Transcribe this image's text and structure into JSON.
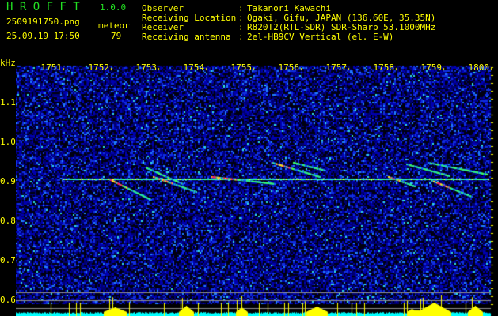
{
  "header": {
    "app_name": "H R O F F T",
    "version": "1.0.0",
    "filename": "2509191750.png",
    "datetime": "25.09.19 17:50",
    "meteor_label": "meteor",
    "meteor_count": "79"
  },
  "info": [
    {
      "label": "Observer",
      "value": "Takanori Kawachi"
    },
    {
      "label": "Receiving Location",
      "value": "Ogaki, Gifu, JAPAN (136.60E, 35.35N)"
    },
    {
      "label": "Receiver",
      "value": "R820T2(RTL-SDR) SDR-Sharp 53.1000MHz"
    },
    {
      "label": "Receiving antenna",
      "value": "2el-HB9CV Vertical (el. E-W)"
    }
  ],
  "axes": {
    "y_unit": "kHz",
    "y_ticks": [
      "1.1",
      "1.0",
      "0.9",
      "0.8",
      "0.7",
      "0.6"
    ],
    "x_ticks": [
      "1751",
      "1752",
      "1753",
      "1754",
      "1755",
      "1756",
      "1757",
      "1758",
      "1759",
      "1800"
    ]
  },
  "colors": {
    "text": "#ffff00",
    "logo": "#22e022",
    "background_noise": "#0000a0",
    "signal_strong": "#ff2060",
    "signal_mid": "#20ff80",
    "level_bar": "#ffff00",
    "level_floor": "#00ffff"
  }
}
